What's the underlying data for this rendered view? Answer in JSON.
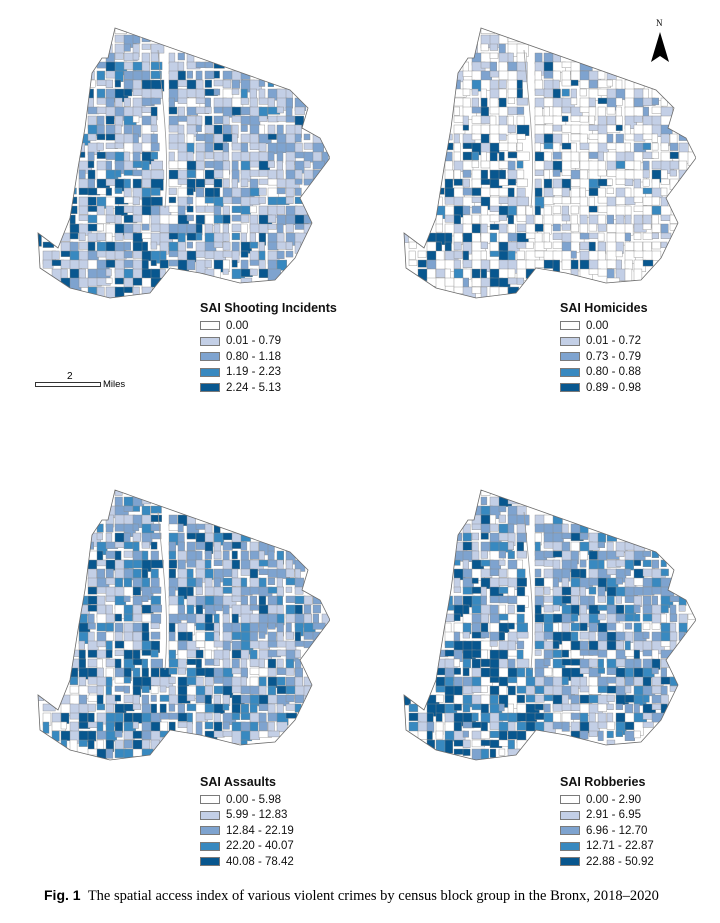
{
  "panels": [
    {
      "title": "SAI Shooting Incidents",
      "classes": [
        "0.00",
        "0.01 - 0.79",
        "0.80 - 1.18",
        "1.19 - 2.23",
        "2.24 - 5.13"
      ],
      "density": [
        0.55,
        0.25,
        0.12,
        0.08
      ]
    },
    {
      "title": "SAI Homicides",
      "classes": [
        "0.00",
        "0.01 - 0.72",
        "0.73 - 0.79",
        "0.80 - 0.88",
        "0.89 - 0.98"
      ],
      "density": [
        0.28,
        0.08,
        0.04,
        0.03
      ]
    },
    {
      "title": "SAI Assaults",
      "classes": [
        "0.00 - 5.98",
        "5.99 - 12.83",
        "12.84 - 22.19",
        "22.20 - 40.07",
        "40.08 - 78.42"
      ],
      "density": [
        0.35,
        0.3,
        0.25,
        0.12
      ]
    },
    {
      "title": "SAI Robberies",
      "classes": [
        "0.00 - 2.90",
        "2.91 - 6.95",
        "6.96 - 12.70",
        "12.71 - 22.87",
        "22.88 - 50.92"
      ],
      "density": [
        0.35,
        0.28,
        0.22,
        0.12
      ]
    }
  ],
  "class_colors": [
    "#ffffff",
    "#c3cfe6",
    "#7ea3cf",
    "#3889c0",
    "#08578f"
  ],
  "scalebar": {
    "value": "2",
    "unit": "Miles"
  },
  "north_arrow": {
    "label": "N"
  },
  "caption": {
    "label": "Fig. 1",
    "text": "The spatial access index of various violent crimes by census block group in the Bronx, 2018–2020"
  }
}
